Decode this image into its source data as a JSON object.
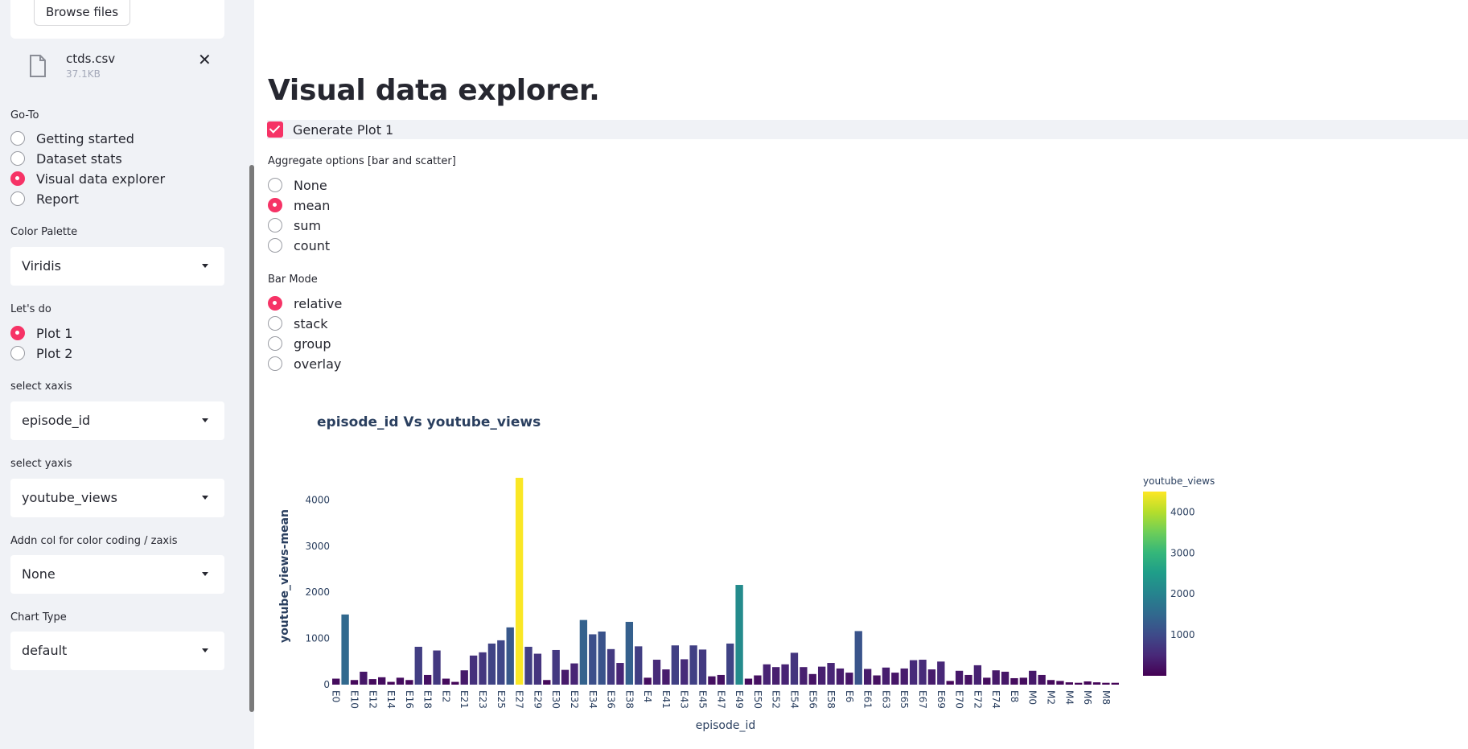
{
  "sidebar": {
    "uploader": {
      "browse_label": "Browse files",
      "file_name": "ctds.csv",
      "file_size": "37.1KB"
    },
    "goto": {
      "label": "Go-To",
      "options": [
        "Getting started",
        "Dataset stats",
        "Visual data explorer",
        "Report"
      ],
      "selected": 2
    },
    "palette": {
      "label": "Color Palette",
      "value": "Viridis"
    },
    "letsdo": {
      "label": "Let's do",
      "options": [
        "Plot 1",
        "Plot 2"
      ],
      "selected": 0
    },
    "xaxis": {
      "label": "select xaxis",
      "value": "episode_id"
    },
    "yaxis": {
      "label": "select yaxis",
      "value": "youtube_views"
    },
    "addn": {
      "label": "Addn col for color coding / zaxis",
      "value": "None"
    },
    "charttype": {
      "label": "Chart Type",
      "value": "default"
    }
  },
  "main": {
    "title": "Visual data explorer.",
    "generate_label": "Generate Plot 1",
    "aggregate": {
      "label": "Aggregate options [bar and scatter]",
      "options": [
        "None",
        "mean",
        "sum",
        "count"
      ],
      "selected": 1
    },
    "barmode": {
      "label": "Bar Mode",
      "options": [
        "relative",
        "stack",
        "group",
        "overlay"
      ],
      "selected": 0
    }
  },
  "colors": {
    "accent": "#f63366",
    "viridis": [
      "#440154",
      "#482878",
      "#3e4a89",
      "#31688e",
      "#26828e",
      "#1f9e89",
      "#35b779",
      "#6ece58",
      "#b5de2b",
      "#fde725"
    ]
  },
  "chart_data": {
    "type": "bar",
    "title": "episode_id Vs youtube_views",
    "xlabel": "episode_id",
    "ylabel": "youtube_views-mean",
    "ylim": [
      0,
      4600
    ],
    "yticks": [
      0,
      1000,
      2000,
      3000,
      4000
    ],
    "colorbar": {
      "title": "youtube_views",
      "ticks": [
        1000,
        2000,
        3000,
        4000
      ],
      "range": [
        0,
        4500
      ]
    },
    "categories": [
      "E0",
      "E1",
      "E10",
      "E11",
      "E12",
      "E13",
      "E14",
      "E15",
      "E16",
      "E17",
      "E18",
      "E19",
      "E2",
      "E20",
      "E21",
      "E22",
      "E23",
      "E24",
      "E25",
      "E26",
      "E27",
      "E28",
      "E29",
      "E3",
      "E30",
      "E31",
      "E32",
      "E33",
      "E34",
      "E35",
      "E36",
      "E37",
      "E38",
      "E39",
      "E4",
      "E40",
      "E41",
      "E42",
      "E43",
      "E44",
      "E45",
      "E46",
      "E47",
      "E48",
      "E49",
      "E5",
      "E50",
      "E51",
      "E52",
      "E53",
      "E54",
      "E55",
      "E56",
      "E57",
      "E58",
      "E59",
      "E6",
      "E60",
      "E61",
      "E62",
      "E63",
      "E64",
      "E65",
      "E66",
      "E67",
      "E68",
      "E69",
      "E7",
      "E70",
      "E71",
      "E72",
      "E73",
      "E74",
      "E75",
      "E8",
      "E9",
      "M0",
      "M1",
      "M2",
      "M3",
      "M4",
      "M5",
      "M6",
      "M7",
      "M8",
      "M9"
    ],
    "tick_labels": [
      "E0",
      "E10",
      "E12",
      "E14",
      "E16",
      "E18",
      "E2",
      "E21",
      "E23",
      "E25",
      "E27",
      "E29",
      "E30",
      "E32",
      "E34",
      "E36",
      "E38",
      "E4",
      "E41",
      "E43",
      "E45",
      "E47",
      "E49",
      "E50",
      "E52",
      "E54",
      "E56",
      "E58",
      "E6",
      "E61",
      "E63",
      "E65",
      "E67",
      "E69",
      "E70",
      "E72",
      "E74",
      "E8",
      "M0",
      "M2",
      "M4",
      "M6",
      "M8"
    ],
    "values": [
      130,
      1520,
      100,
      280,
      120,
      160,
      60,
      150,
      100,
      820,
      210,
      740,
      130,
      60,
      310,
      630,
      700,
      890,
      960,
      1240,
      4480,
      820,
      670,
      100,
      750,
      320,
      460,
      1400,
      1090,
      1150,
      770,
      470,
      1360,
      830,
      150,
      540,
      330,
      850,
      550,
      850,
      760,
      180,
      210,
      890,
      2160,
      130,
      200,
      440,
      380,
      440,
      690,
      380,
      230,
      390,
      470,
      350,
      260,
      1160,
      340,
      200,
      370,
      260,
      350,
      530,
      540,
      330,
      500,
      80,
      300,
      210,
      420,
      150,
      310,
      280,
      140,
      150,
      300,
      210,
      100,
      80,
      50,
      40,
      70,
      50,
      40,
      40
    ]
  }
}
